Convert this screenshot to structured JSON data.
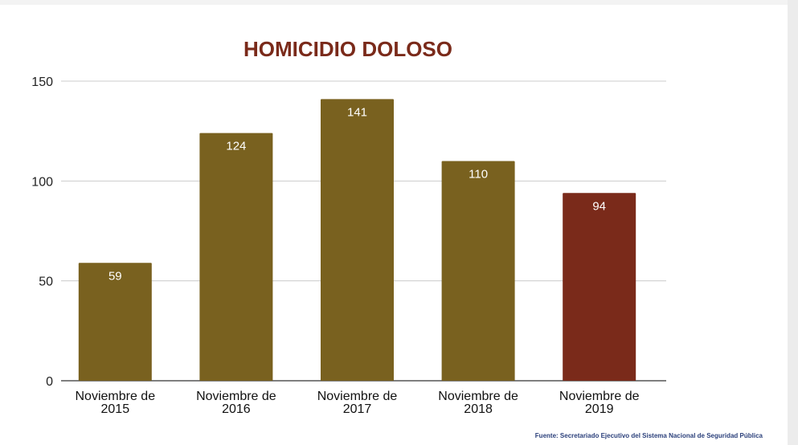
{
  "chart_data": {
    "type": "bar",
    "title": "HOMICIDIO DOLOSO",
    "categories": [
      [
        "Noviembre de",
        "2015"
      ],
      [
        "Noviembre de",
        "2016"
      ],
      [
        "Noviembre de",
        "2017"
      ],
      [
        "Noviembre de",
        "2018"
      ],
      [
        "Noviembre de",
        "2019"
      ]
    ],
    "values": [
      59,
      124,
      141,
      110,
      94
    ],
    "data_labels": [
      "59",
      "124",
      "141",
      "110",
      "94"
    ],
    "bar_colors": [
      "#79611f",
      "#79611f",
      "#79611f",
      "#79611f",
      "#7a2a1a"
    ],
    "ylim": [
      0,
      150
    ],
    "yticks": [
      0,
      50,
      100,
      150
    ],
    "xlabel": "",
    "ylabel": "",
    "grid": true,
    "legend": "none"
  },
  "source": "Fuente: Secretariado Ejecutivo del Sistema Nacional de Seguridad Pública"
}
